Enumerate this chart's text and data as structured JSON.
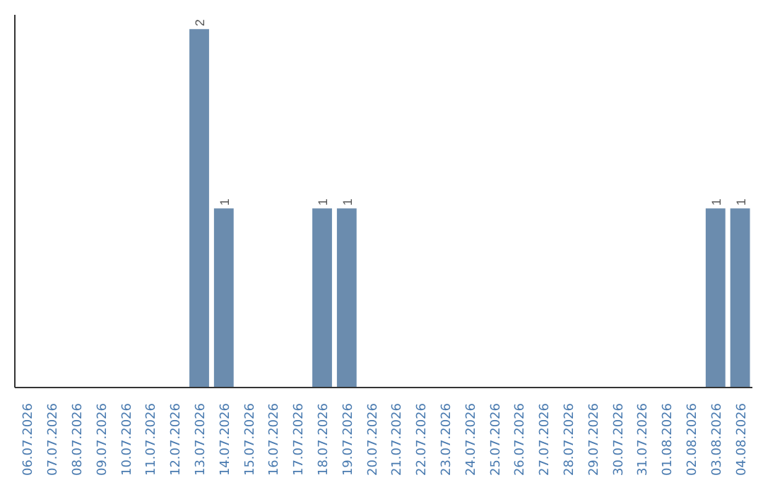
{
  "chart_data": {
    "type": "bar",
    "categories": [
      "06.07.2026",
      "07.07.2026",
      "08.07.2026",
      "09.07.2026",
      "10.07.2026",
      "11.07.2026",
      "12.07.2026",
      "13.07.2026",
      "14.07.2026",
      "15.07.2026",
      "16.07.2026",
      "17.07.2026",
      "18.07.2026",
      "19.07.2026",
      "20.07.2026",
      "21.07.2026",
      "22.07.2026",
      "23.07.2026",
      "24.07.2026",
      "25.07.2026",
      "26.07.2026",
      "27.07.2026",
      "28.07.2026",
      "29.07.2026",
      "30.07.2026",
      "31.07.2026",
      "01.08.2026",
      "02.08.2026",
      "03.08.2026",
      "04.08.2026"
    ],
    "values": [
      0,
      0,
      0,
      0,
      0,
      0,
      0,
      2,
      1,
      0,
      0,
      0,
      1,
      1,
      0,
      0,
      0,
      0,
      0,
      0,
      0,
      0,
      0,
      0,
      0,
      0,
      0,
      0,
      1,
      1
    ],
    "value_labels": [
      null,
      null,
      null,
      null,
      null,
      null,
      null,
      "2",
      "1",
      null,
      null,
      null,
      "1",
      "1",
      null,
      null,
      null,
      null,
      null,
      null,
      null,
      null,
      null,
      null,
      null,
      null,
      null,
      null,
      "1",
      "1"
    ],
    "color": "#6b8cae"
  }
}
